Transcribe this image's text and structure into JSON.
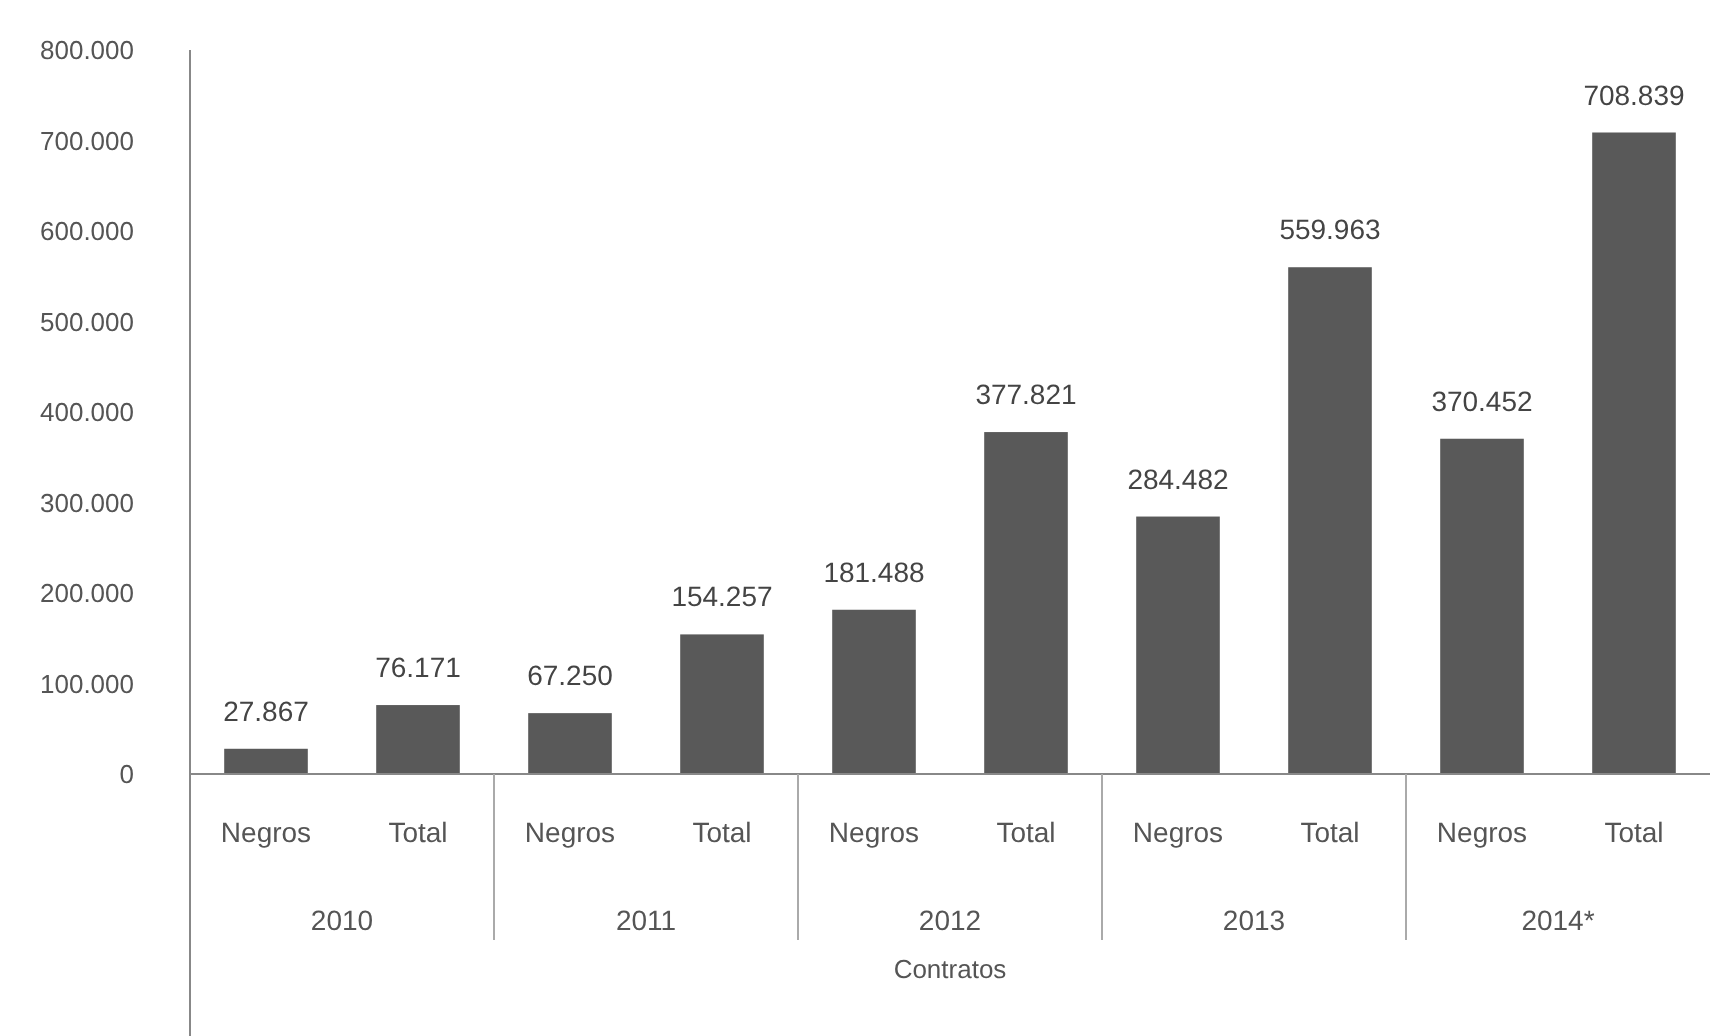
{
  "chart_data": {
    "type": "bar",
    "xlabel": "Contratos",
    "categories": [
      "Negros",
      "Total",
      "Negros",
      "Total",
      "Negros",
      "Total",
      "Negros",
      "Total",
      "Negros",
      "Total"
    ],
    "values": [
      27867,
      76171,
      67250,
      154257,
      181488,
      377821,
      284482,
      559963,
      370452,
      708839
    ],
    "value_labels": [
      "27.867",
      "76.171",
      "67.250",
      "154.257",
      "181.488",
      "377.821",
      "284.482",
      "559.963",
      "370.452",
      "708.839"
    ],
    "color": "#595959",
    "ylim": [
      0,
      800000
    ],
    "yticks": [
      0,
      {
        "value": 100000,
        "label": "100.000"
      },
      {
        "value": 200000,
        "label": "200.000"
      },
      {
        "value": 300000,
        "label": "300.000"
      },
      {
        "value": 400000,
        "label": "400.000"
      },
      {
        "value": 500000,
        "label": "500.000"
      },
      {
        "value": 600000,
        "label": "600.000"
      },
      {
        "value": 700000,
        "label": "700.000"
      },
      {
        "value": 800000,
        "label": "800.000"
      }
    ],
    "annotations": [
      "2010",
      "2011",
      "2012",
      "2013",
      "2014*"
    ],
    "grid": false
  }
}
